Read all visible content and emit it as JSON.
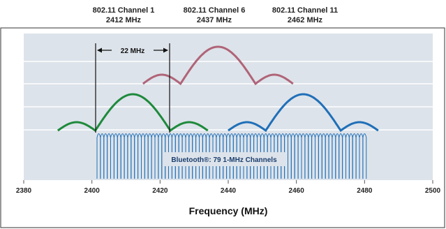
{
  "channel_labels": [
    {
      "name": "802.11 Channel 1",
      "freq": "2412 MHz"
    },
    {
      "name": "802.11 Channel 6",
      "freq": "2437 MHz"
    },
    {
      "name": "802.11 Channel 11",
      "freq": "2462 MHz"
    }
  ],
  "bandwidth_label": "22 MHz",
  "bluetooth_label": "Bluetooth®: 79 1-MHz Channels",
  "x_axis": {
    "title": "Frequency (MHz)",
    "ticks": [
      "2380",
      "2400",
      "2420",
      "2440",
      "2460",
      "2480",
      "2500"
    ]
  },
  "colors": {
    "plot_background": "#dde3ea",
    "grid": "#ffffff",
    "channel1": "#1e8a3c",
    "channel6": "#b06478",
    "channel11": "#1f6fb8",
    "bluetooth": "#1f6fb8",
    "frame": "#555555"
  }
}
